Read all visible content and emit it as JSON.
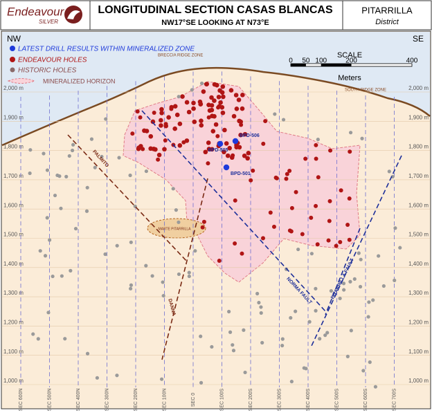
{
  "header": {
    "company": "Endeavour",
    "company_sub": "SILVER",
    "title": "LONGITUDINAL SECTION CASAS BLANCAS",
    "subtitle": "NW17°SE LOOKING AT N73°E",
    "project": "PITARRILLA",
    "project_sub": "District"
  },
  "map": {
    "left_dir": "NW",
    "right_dir": "SE",
    "legend": [
      "LATEST DRILL RESULTS WITHIN MINERALIZED ZONE",
      "ENDEAVOUR HOLES",
      "HISTORIC HOLES",
      "MINERALIZED HORIZON"
    ],
    "scale": {
      "title": "SCALE",
      "ticks": [
        "0",
        "50",
        "100",
        "200",
        "400"
      ],
      "unit": "Meters"
    },
    "elevations": [
      "2,000 m",
      "1,900 m",
      "1,800 m",
      "1,700 m",
      "1,600 m",
      "1,500 m",
      "1,400 m",
      "1,300 m",
      "1,200 m",
      "1,100 m",
      "1,000 m"
    ],
    "sections": [
      "SEC 600N",
      "SEC 500N",
      "SEC 400N",
      "SEC 300N",
      "SEC 200N",
      "SEC 100N",
      "SEC 0",
      "SEC 100S",
      "SEC 200S",
      "SEC 300S",
      "SEC 400S",
      "SEC 500S",
      "SEC 600S",
      "SEC 700S"
    ],
    "zones": [
      "BRECCIA RIDGE ZONE",
      "SOUTH RIDGE ZONE"
    ],
    "faults": [
      "PALMITO",
      "DANNA",
      "NORMA FAULT",
      "PITARRILLA FAULT"
    ],
    "lens": "MARTE PITARRILLA",
    "latest_holes": [
      "BPD-506",
      "BPD-505",
      "BPD-501"
    ]
  }
}
